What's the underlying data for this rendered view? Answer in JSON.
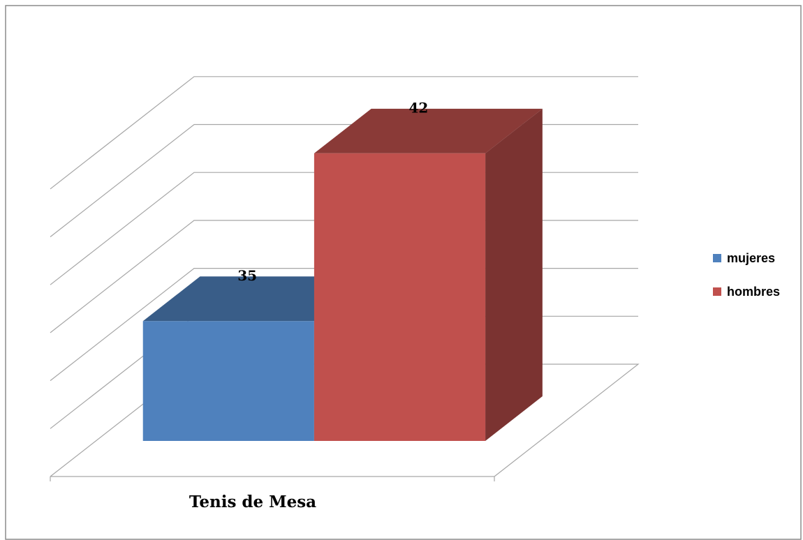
{
  "chart_data": {
    "type": "bar3d",
    "categories": [
      "Tenis de Mesa"
    ],
    "series": [
      {
        "name": "mujeres",
        "color": "#4f81bd",
        "values": [
          35
        ]
      },
      {
        "name": "hombres",
        "color": "#c0504d",
        "values": [
          42
        ]
      }
    ],
    "ylim": [
      30,
      42
    ],
    "yticks": [
      30,
      32,
      34,
      36,
      38,
      40,
      42
    ],
    "grid": true,
    "legend": "right"
  }
}
